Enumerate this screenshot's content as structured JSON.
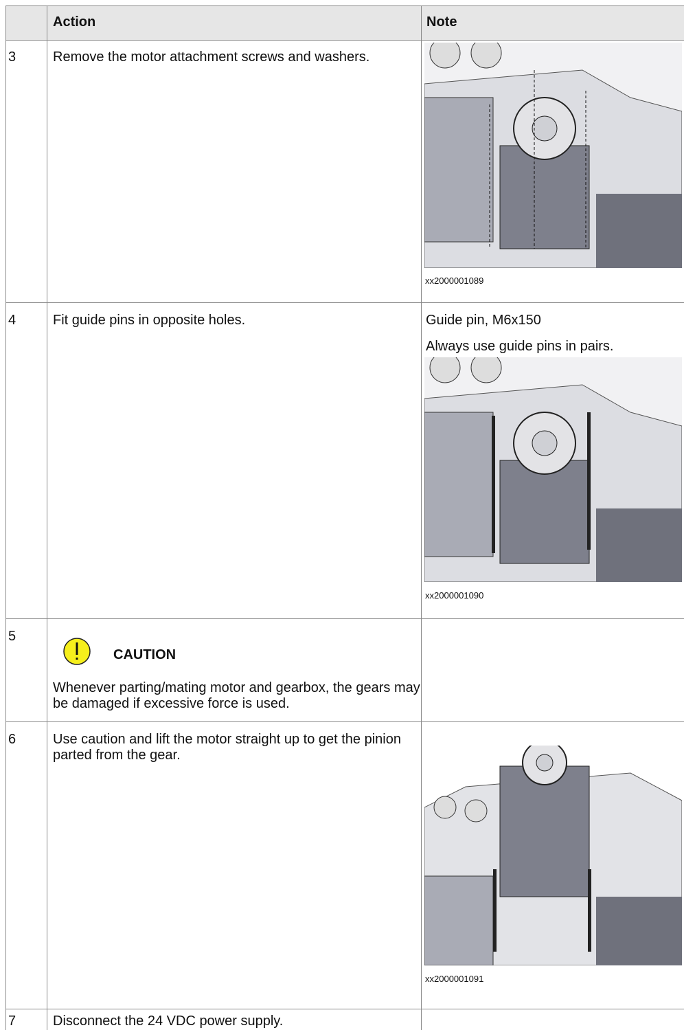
{
  "header": {
    "action": "Action",
    "note": "Note"
  },
  "rows": [
    {
      "step": "3",
      "action": "Remove the motor attachment screws and washers.",
      "caption": "xx2000001089"
    },
    {
      "step": "4",
      "action": "Fit guide pins in opposite holes.",
      "note": [
        "Guide pin, M6x150",
        "Always use guide pins in pairs."
      ],
      "caption": "xx2000001090"
    },
    {
      "step": "5",
      "caution_title": "CAUTION",
      "action": "Whenever parting/mating motor and gearbox, the gears may be damaged if excessive force is used."
    },
    {
      "step": "6",
      "action": "Use caution and lift the motor straight up to get the pinion parted from the gear.",
      "caption": "xx2000001091"
    },
    {
      "step": "7",
      "action": "Disconnect the 24 VDC power supply."
    }
  ]
}
